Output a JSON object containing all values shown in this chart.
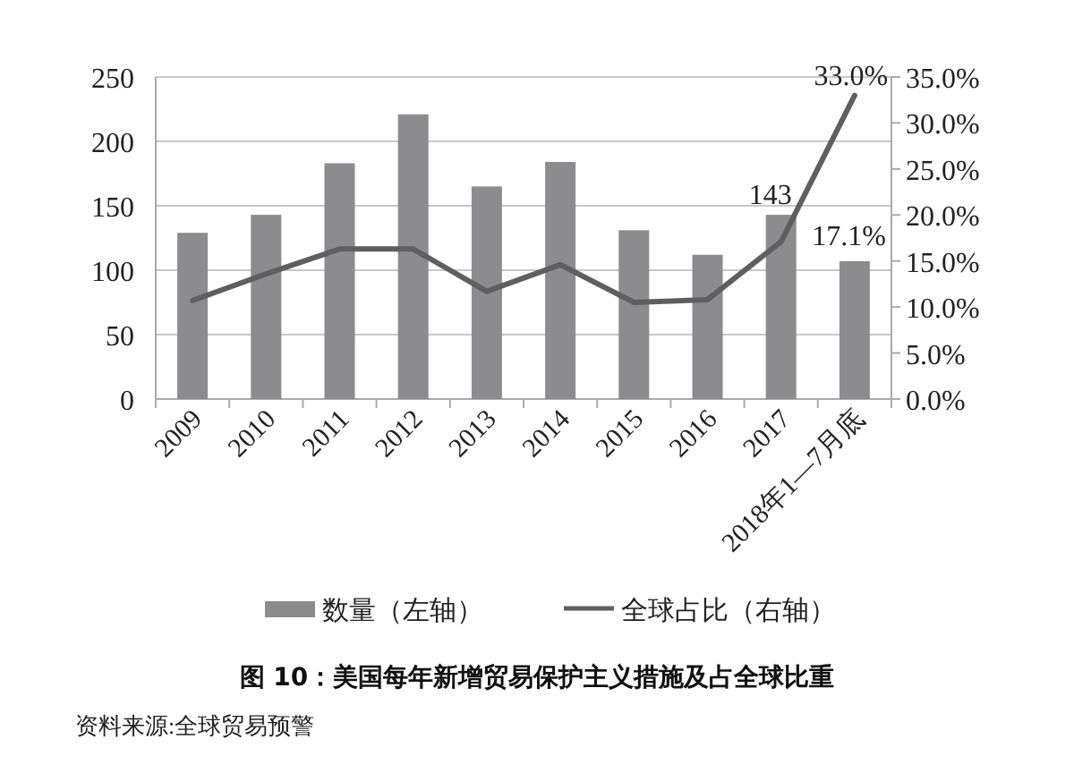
{
  "chart_data": {
    "type": "bar",
    "title": "图 10：美国每年新增贸易保护主义措施及占全球比重",
    "annotations": [
      "资料来源:全球贸易预警"
    ],
    "categories": [
      "2009",
      "2010",
      "2011",
      "2012",
      "2013",
      "2014",
      "2015",
      "2016",
      "2017",
      "2018年1—7月底"
    ],
    "series": [
      {
        "name": "数量（左轴）",
        "color": "#8c8c8e",
        "values": [
          129,
          143,
          183,
          221,
          165,
          184,
          131,
          112,
          143,
          107
        ],
        "value_labels": [
          null,
          null,
          null,
          null,
          null,
          null,
          null,
          null,
          "143",
          null
        ]
      },
      {
        "name": "全球占比（右轴）",
        "type": "line",
        "axis": "y2",
        "color": "#5f5f61",
        "values": [
          10.7,
          13.6,
          16.3,
          16.3,
          11.7,
          14.6,
          10.5,
          10.8,
          17.1,
          33.0
        ],
        "value_labels": [
          null,
          null,
          null,
          null,
          null,
          null,
          null,
          null,
          "17.1%",
          "33.0%"
        ]
      }
    ],
    "ylim": [
      0,
      250
    ],
    "yticks": [
      0,
      50,
      100,
      150,
      200,
      250
    ],
    "y2lim": [
      0,
      35
    ],
    "y2ticks": [
      {
        "value": 0,
        "label": "0.0%"
      },
      {
        "value": 5,
        "label": "5.0%"
      },
      {
        "value": 10,
        "label": "10.0%"
      },
      {
        "value": 15,
        "label": "15.0%"
      },
      {
        "value": 20,
        "label": "20.0%"
      },
      {
        "value": 25,
        "label": "25.0%"
      },
      {
        "value": 30,
        "label": "30.0%"
      },
      {
        "value": 35,
        "label": "35.0%"
      }
    ],
    "grid": "y",
    "legend": "bottom",
    "marker": "none",
    "line_style": "solid"
  }
}
